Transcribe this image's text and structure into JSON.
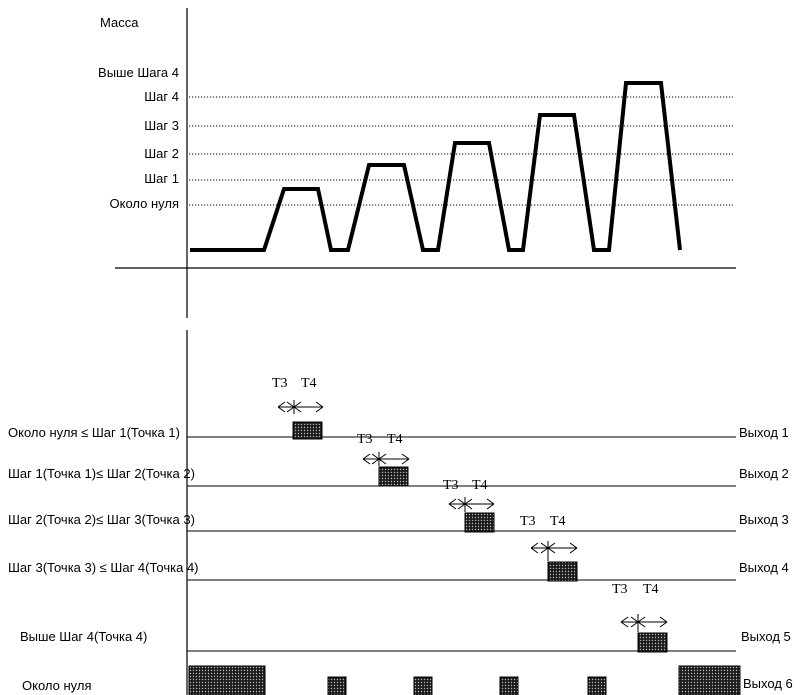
{
  "top_chart": {
    "y_axis_title": "Масса",
    "levels": {
      "above_step4": "Выше Шага 4",
      "step4": "Шаг 4",
      "step3": "Шаг 3",
      "step2": "Шаг 2",
      "step1": "Шаг 1",
      "near_zero": "Около нуля"
    }
  },
  "timing_chart": {
    "rows": [
      {
        "condition": "Около нуля ≤ Шаг 1(Точка 1)",
        "output": "Выход 1",
        "t3": "T3",
        "t4": "T4"
      },
      {
        "condition": "Шаг 1(Точка 1)≤ Шаг 2(Точка 2)",
        "output": "Выход 2",
        "t3": "T3",
        "t4": "T4"
      },
      {
        "condition": "Шаг 2(Точка 2)≤ Шаг 3(Точка 3)",
        "output": "Выход 3",
        "t3": "T3",
        "t4": "T4"
      },
      {
        "condition": "Шаг 3(Точка 3) ≤ Шаг 4(Точка 4)",
        "output": "Выход 4",
        "t3": "T3",
        "t4": "T4"
      },
      {
        "condition": "Выше Шаг 4(Точка 4)",
        "output": "Выход 5",
        "t3": "T3",
        "t4": "T4"
      },
      {
        "condition": "Около нуля",
        "output": "Выход 6"
      }
    ]
  },
  "colors": {
    "line": "#000000",
    "block": "#222222"
  }
}
